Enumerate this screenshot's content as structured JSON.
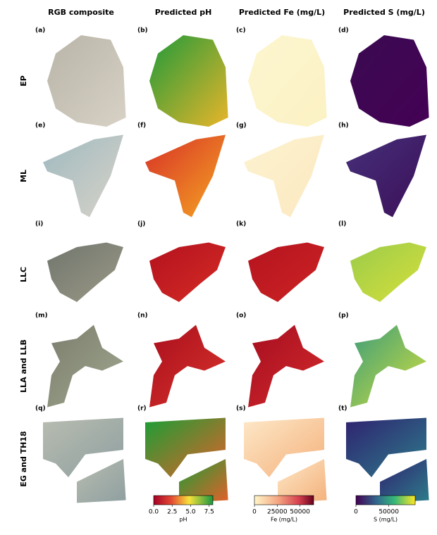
{
  "columns": [
    "RGB composite",
    "Predicted pH",
    "Predicted Fe (mg/L)",
    "Predicted S (mg/L)"
  ],
  "rows": [
    "EP",
    "ML",
    "LLC",
    "LLA and LLB",
    "EG and TH18"
  ],
  "panels": [
    [
      "(a)",
      "(b)",
      "(c)",
      "(d)"
    ],
    [
      "(e)",
      "(f)",
      "(g)",
      "(h)"
    ],
    [
      "(i)",
      "(j)",
      "(k)",
      "(l)"
    ],
    [
      "(m)",
      "(n)",
      "(o)",
      "(p)"
    ],
    [
      "(q)",
      "(r)",
      "(s)",
      "(t)"
    ]
  ],
  "colorbars": [
    {
      "label": "pH",
      "lim": [
        0,
        8
      ],
      "ticks": [
        {
          "value": 0,
          "label": "0.0"
        },
        {
          "value": 2.5,
          "label": "2.5"
        },
        {
          "value": 5,
          "label": "5.0"
        },
        {
          "value": 7.5,
          "label": "7.5"
        }
      ]
    },
    {
      "label": "Fe (mg/L)",
      "lim": [
        0,
        65000
      ],
      "ticks": [
        0,
        25000,
        50000
      ]
    },
    {
      "label": "S (mg/L)",
      "lim": [
        0,
        90000
      ],
      "ticks": [
        0,
        50000
      ]
    }
  ]
}
